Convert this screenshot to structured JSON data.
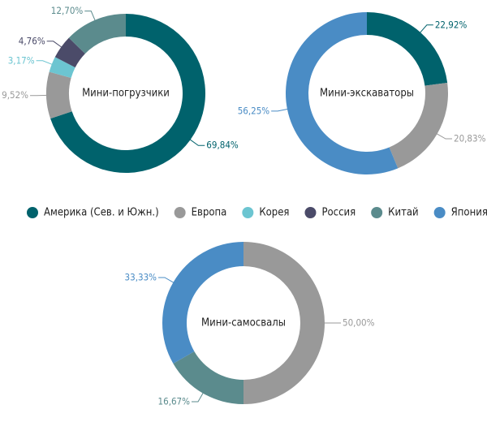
{
  "chart_data": [
    {
      "type": "donut",
      "title": "Мини-погрузчики",
      "categories": [
        "Америка (Сев. и Южн.)",
        "Европа",
        "Корея",
        "Россия",
        "Китай"
      ],
      "values": [
        69.84,
        9.52,
        3.17,
        4.76,
        12.7
      ],
      "value_labels": [
        "69,84%",
        "9,52%",
        "3,17%",
        "4,76%",
        "12,70%"
      ],
      "colors": [
        "#00626c",
        "#999999",
        "#6cc5d1",
        "#4b4b69",
        "#5b8b8d"
      ]
    },
    {
      "type": "donut",
      "title": "Мини-экскаваторы",
      "categories": [
        "Америка (Сев. и Южн.)",
        "Европа",
        "Япония"
      ],
      "values": [
        22.92,
        20.83,
        56.25
      ],
      "value_labels": [
        "22,92%",
        "20,83%",
        "56,25%"
      ],
      "colors": [
        "#00626c",
        "#999999",
        "#4a8cc5"
      ]
    },
    {
      "type": "donut",
      "title": "Мини-самосвалы",
      "categories": [
        "Европа",
        "Китай",
        "Япония"
      ],
      "values": [
        50.0,
        16.67,
        33.33
      ],
      "value_labels": [
        "50,00%",
        "16,67%",
        "33,33%"
      ],
      "colors": [
        "#999999",
        "#5b8b8d",
        "#4a8cc5"
      ]
    }
  ],
  "legend": [
    {
      "name": "Америка (Сев. и Южн.)",
      "color": "#00626c"
    },
    {
      "name": "Европа",
      "color": "#999999"
    },
    {
      "name": "Корея",
      "color": "#6cc5d1"
    },
    {
      "name": "Россия",
      "color": "#4b4b69"
    },
    {
      "name": "Китай",
      "color": "#5b8b8d"
    },
    {
      "name": "Япония",
      "color": "#4a8cc5"
    }
  ]
}
